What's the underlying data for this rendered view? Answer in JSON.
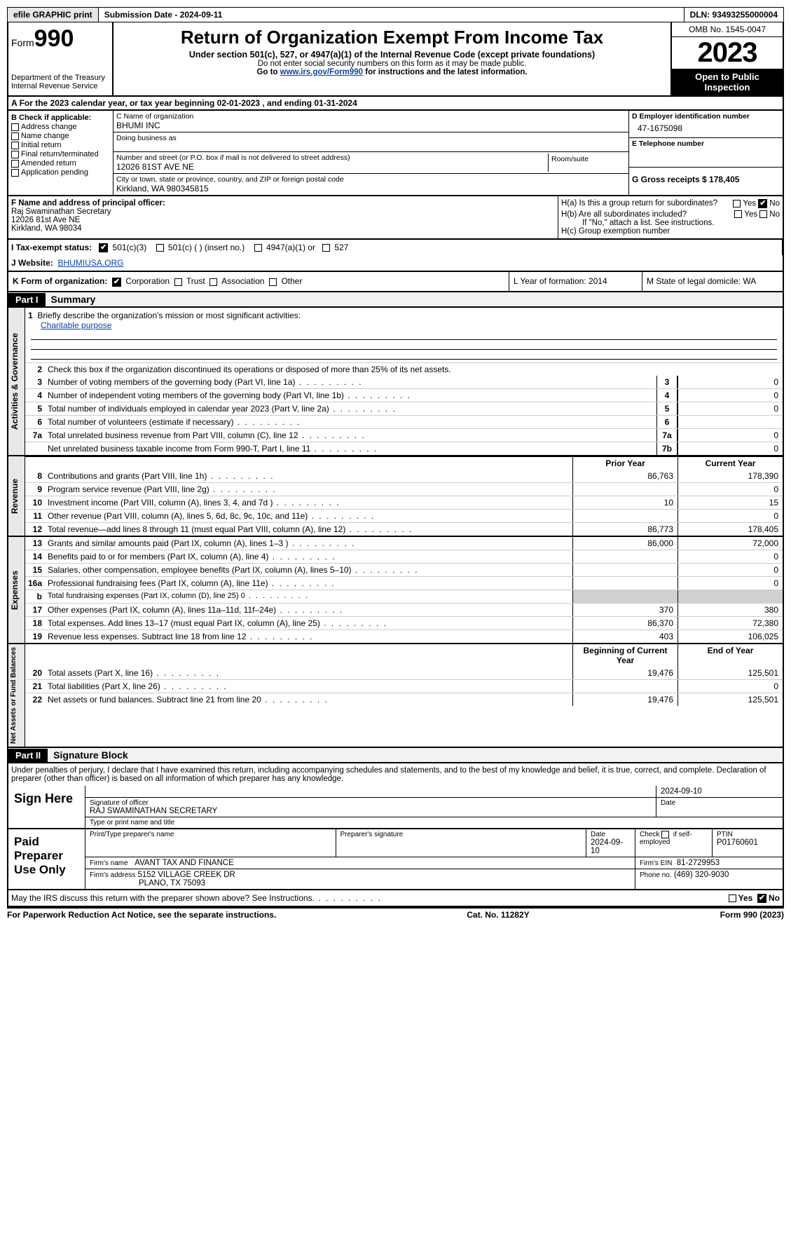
{
  "topbar": {
    "efile_btn": "efile GRAPHIC print",
    "submission_label": "Submission Date - 2024-09-11",
    "dln_label": "DLN: 93493255000004"
  },
  "header": {
    "form_label": "Form",
    "form_number": "990",
    "dept": "Department of the Treasury\nInternal Revenue Service",
    "title": "Return of Organization Exempt From Income Tax",
    "subtitle": "Under section 501(c), 527, or 4947(a)(1) of the Internal Revenue Code (except private foundations)",
    "note1": "Do not enter social security numbers on this form as it may be made public.",
    "note2_pre": "Go to ",
    "note2_link": "www.irs.gov/Form990",
    "note2_post": " for instructions and the latest information.",
    "omb": "OMB No. 1545-0047",
    "year": "2023",
    "inspect": "Open to Public Inspection"
  },
  "sectionA": {
    "text": "For the 2023 calendar year, or tax year beginning 02-01-2023   , and ending 01-31-2024"
  },
  "sectionB": {
    "heading": "B Check if applicable:",
    "opts": [
      "Address change",
      "Name change",
      "Initial return",
      "Final return/terminated",
      "Amended return",
      "Application pending"
    ]
  },
  "sectionC": {
    "name_lbl": "C Name of organization",
    "name_val": "BHUMI INC",
    "dba_lbl": "Doing business as",
    "street_lbl": "Number and street (or P.O. box if mail is not delivered to street address)",
    "street_val": "12026 81ST AVE NE",
    "room_lbl": "Room/suite",
    "city_lbl": "City or town, state or province, country, and ZIP or foreign postal code",
    "city_val": "Kirkland, WA  980345815"
  },
  "sectionD": {
    "ein_lbl": "D Employer identification number",
    "ein_val": "47-1675098",
    "tel_lbl": "E Telephone number",
    "gross_lbl": "G Gross receipts $ 178,405"
  },
  "sectionF": {
    "lbl": "F  Name and address of principal officer:",
    "l1": "Raj Swaminathan Secretary",
    "l2": "12026 81st Ave NE",
    "l3": "Kirkland, WA  98034"
  },
  "sectionH": {
    "ha": "H(a)  Is this a group return for subordinates?",
    "hb": "H(b)  Are all subordinates included?",
    "hb_note": "If \"No,\" attach a list. See instructions.",
    "hc": "H(c)  Group exemption number",
    "yes": "Yes",
    "no": "No"
  },
  "rowI": {
    "lbl": "I   Tax-exempt status:",
    "o1": "501(c)(3)",
    "o2": "501(c) (  ) (insert no.)",
    "o3": "4947(a)(1) or",
    "o4": "527"
  },
  "rowJ": {
    "lbl": "J   Website:",
    "val": "BHUMIUSA.ORG"
  },
  "rowK": {
    "lbl": "K Form of organization:",
    "o1": "Corporation",
    "o2": "Trust",
    "o3": "Association",
    "o4": "Other"
  },
  "rowL": {
    "text": "L Year of formation: 2014"
  },
  "rowM": {
    "text": "M State of legal domicile: WA"
  },
  "part1": {
    "hdr": "Part I",
    "title": "Summary"
  },
  "summary": {
    "q1_lbl": "Briefly describe the organization's mission or most significant activities:",
    "q1_val": "Charitable purpose",
    "q2": "Check this box      if the organization discontinued its operations or disposed of more than 25% of its net assets.",
    "lines_gov": [
      {
        "n": "3",
        "d": "Number of voting members of the governing body (Part VI, line 1a)",
        "box": "3",
        "v": "0"
      },
      {
        "n": "4",
        "d": "Number of independent voting members of the governing body (Part VI, line 1b)",
        "box": "4",
        "v": "0"
      },
      {
        "n": "5",
        "d": "Total number of individuals employed in calendar year 2023 (Part V, line 2a)",
        "box": "5",
        "v": "0"
      },
      {
        "n": "6",
        "d": "Total number of volunteers (estimate if necessary)",
        "box": "6",
        "v": ""
      },
      {
        "n": "7a",
        "d": "Total unrelated business revenue from Part VIII, column (C), line 12",
        "box": "7a",
        "v": "0"
      },
      {
        "n": "",
        "d": "Net unrelated business taxable income from Form 990-T, Part I, line 11",
        "box": "7b",
        "v": "0"
      }
    ],
    "col_prior": "Prior Year",
    "col_current": "Current Year",
    "lines_rev": [
      {
        "n": "8",
        "d": "Contributions and grants (Part VIII, line 1h)",
        "p": "86,763",
        "c": "178,390"
      },
      {
        "n": "9",
        "d": "Program service revenue (Part VIII, line 2g)",
        "p": "",
        "c": "0"
      },
      {
        "n": "10",
        "d": "Investment income (Part VIII, column (A), lines 3, 4, and 7d )",
        "p": "10",
        "c": "15"
      },
      {
        "n": "11",
        "d": "Other revenue (Part VIII, column (A), lines 5, 6d, 8c, 9c, 10c, and 11e)",
        "p": "",
        "c": "0"
      },
      {
        "n": "12",
        "d": "Total revenue—add lines 8 through 11 (must equal Part VIII, column (A), line 12)",
        "p": "86,773",
        "c": "178,405"
      }
    ],
    "lines_exp": [
      {
        "n": "13",
        "d": "Grants and similar amounts paid (Part IX, column (A), lines 1–3 )",
        "p": "86,000",
        "c": "72,000"
      },
      {
        "n": "14",
        "d": "Benefits paid to or for members (Part IX, column (A), line 4)",
        "p": "",
        "c": "0"
      },
      {
        "n": "15",
        "d": "Salaries, other compensation, employee benefits (Part IX, column (A), lines 5–10)",
        "p": "",
        "c": "0"
      },
      {
        "n": "16a",
        "d": "Professional fundraising fees (Part IX, column (A), line 11e)",
        "p": "",
        "c": "0"
      },
      {
        "n": "b",
        "d": "Total fundraising expenses (Part IX, column (D), line 25) 0",
        "p": "__shade__",
        "c": "__shade__",
        "small": true
      },
      {
        "n": "17",
        "d": "Other expenses (Part IX, column (A), lines 11a–11d, 11f–24e)",
        "p": "370",
        "c": "380"
      },
      {
        "n": "18",
        "d": "Total expenses. Add lines 13–17 (must equal Part IX, column (A), line 25)",
        "p": "86,370",
        "c": "72,380"
      },
      {
        "n": "19",
        "d": "Revenue less expenses. Subtract line 18 from line 12",
        "p": "403",
        "c": "106,025"
      }
    ],
    "col_begin": "Beginning of Current Year",
    "col_end": "End of Year",
    "lines_net": [
      {
        "n": "20",
        "d": "Total assets (Part X, line 16)",
        "p": "19,476",
        "c": "125,501"
      },
      {
        "n": "21",
        "d": "Total liabilities (Part X, line 26)",
        "p": "",
        "c": "0"
      },
      {
        "n": "22",
        "d": "Net assets or fund balances. Subtract line 21 from line 20",
        "p": "19,476",
        "c": "125,501"
      }
    ],
    "side_gov": "Activities & Governance",
    "side_rev": "Revenue",
    "side_exp": "Expenses",
    "side_net": "Net Assets or Fund Balances"
  },
  "part2": {
    "hdr": "Part II",
    "title": "Signature Block"
  },
  "declaration": "Under penalties of perjury, I declare that I have examined this return, including accompanying schedules and statements, and to the best of my knowledge and belief, it is true, correct, and complete. Declaration of preparer (other than officer) is based on all information of which preparer has any knowledge.",
  "sign": {
    "lbl": "Sign Here",
    "date": "2024-09-10",
    "sig_lbl": "Signature of officer",
    "name": "RAJ SWAMINATHAN  SECRETARY",
    "name_lbl": "Type or print name and title",
    "date_lbl": "Date"
  },
  "preparer": {
    "lbl": "Paid Preparer Use Only",
    "h1": "Print/Type preparer's name",
    "h2": "Preparer's signature",
    "h3": "Date",
    "h3v": "2024-09-10",
    "h4": "Check       if self-employed",
    "h5": "PTIN",
    "h5v": "P01760601",
    "firm_lbl": "Firm's name",
    "firm_val": "AVANT TAX AND FINANCE",
    "ein_lbl": "Firm's EIN",
    "ein_val": "81-2729953",
    "addr_lbl": "Firm's address",
    "addr_val1": "5152 VILLAGE CREEK DR",
    "addr_val2": "PLANO, TX  75093",
    "phone_lbl": "Phone no.",
    "phone_val": "(469) 320-9030"
  },
  "discuss": {
    "text": "May the IRS discuss this return with the preparer shown above? See Instructions.",
    "yes": "Yes",
    "no": "No"
  },
  "footer": {
    "left": "For Paperwork Reduction Act Notice, see the separate instructions.",
    "mid": "Cat. No. 11282Y",
    "right": "Form 990 (2023)"
  }
}
